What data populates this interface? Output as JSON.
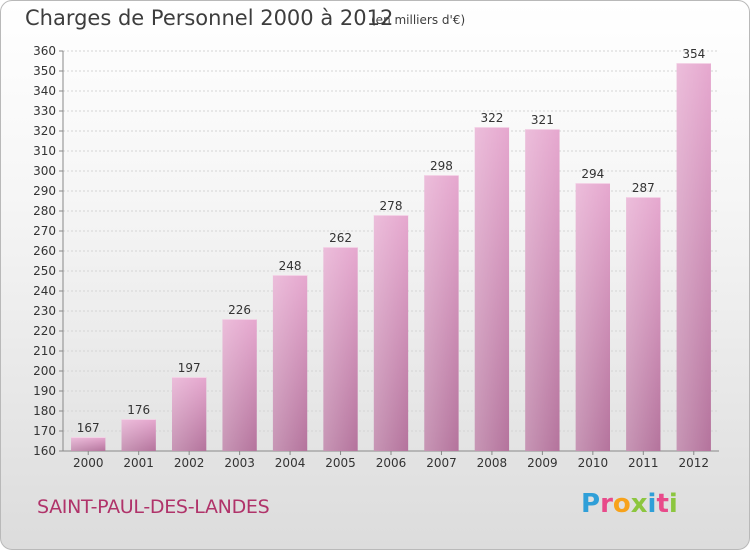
{
  "header": {
    "title": "Charges de Personnel 2000 à 2012",
    "subtitle": "(en milliers d'€)"
  },
  "footer": {
    "town": "SAINT-PAUL-DES-LANDES",
    "logo_letters": [
      "P",
      "r",
      "o",
      "x",
      "i",
      "t",
      "i"
    ],
    "logo_colors": [
      "#2f9fd8",
      "#e84a8a",
      "#f7a21b",
      "#8cc63f",
      "#2f9fd8",
      "#e84a8a",
      "#8cc63f"
    ]
  },
  "chart_data": {
    "type": "bar",
    "title": "Charges de Personnel 2000 à 2012",
    "subtitle": "(en milliers d'€)",
    "categories": [
      "2000",
      "2001",
      "2002",
      "2003",
      "2004",
      "2005",
      "2006",
      "2007",
      "2008",
      "2009",
      "2010",
      "2011",
      "2012"
    ],
    "values": [
      167,
      176,
      197,
      226,
      248,
      262,
      278,
      298,
      322,
      321,
      294,
      287,
      354
    ],
    "ylim": [
      160,
      360
    ],
    "ytick_step": 10,
    "grid": true,
    "bar_color": "#d98bb8",
    "label_color": "#333333"
  }
}
